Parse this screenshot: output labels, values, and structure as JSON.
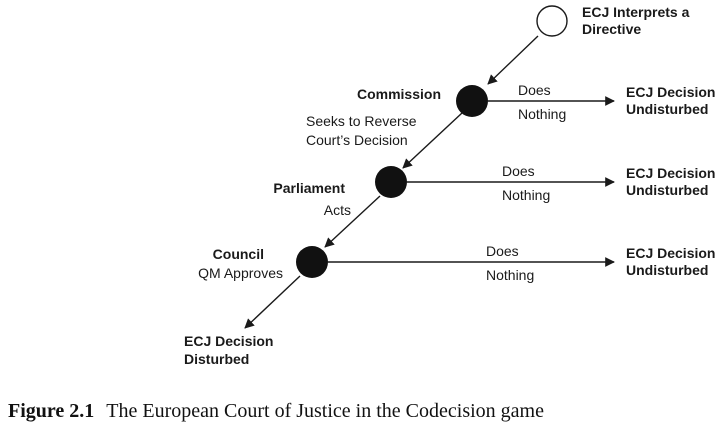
{
  "nodes": {
    "start": {
      "label_line1": "ECJ Interprets a",
      "label_line2": "Directive"
    },
    "commission": {
      "title": "Commission"
    },
    "parliament": {
      "title": "Parliament"
    },
    "council": {
      "title": "Council"
    }
  },
  "moves": {
    "commission_reverse_line1": "Seeks to Reverse",
    "commission_reverse_line2": "Court’s Decision",
    "parliament_acts": "Acts",
    "council_approves": "QM Approves",
    "does": "Does",
    "nothing": "Nothing"
  },
  "outcomes": {
    "undisturbed_line1": "ECJ Decision",
    "undisturbed_line2": "Undisturbed",
    "disturbed_line1": "ECJ Decision",
    "disturbed_line2": "Disturbed"
  },
  "caption": {
    "number": "Figure 2.1",
    "text": "The European Court of Justice in the Codecision game"
  },
  "colors": {
    "node_fill": "#111111",
    "start_fill": "#ffffff",
    "line": "#1a1a1a"
  }
}
